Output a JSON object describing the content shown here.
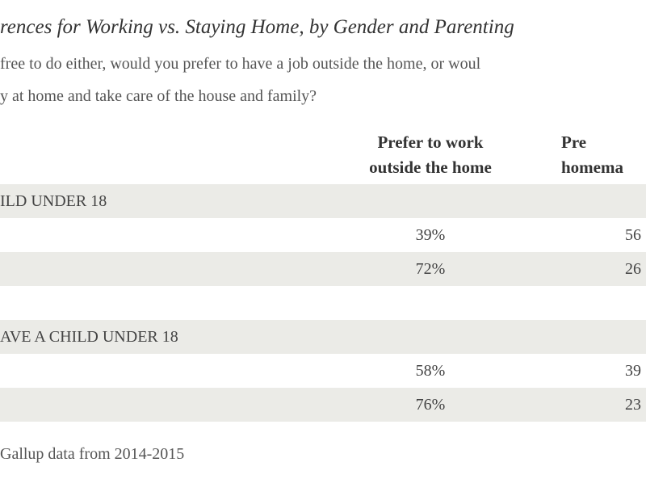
{
  "header": {
    "title": "rences for Working vs. Staying Home, by Gender and Parenting",
    "subtitle_lines": [
      "free to do either, would you prefer to have a job outside the home, or woul",
      "y at home and take care of the house and family?"
    ]
  },
  "table": {
    "columns": [
      [
        "Prefer to work",
        "outside the home"
      ],
      [
        "Pre",
        "homema"
      ]
    ],
    "rows": [
      {
        "label": "ILD UNDER 18",
        "cells": []
      },
      {
        "label": null,
        "cells": [
          "39%",
          "56"
        ]
      },
      {
        "label": null,
        "cells": [
          "72%",
          "26"
        ]
      },
      {
        "label": null,
        "cells": []
      },
      {
        "label": "AVE A CHILD UNDER 18",
        "cells": []
      },
      {
        "label": null,
        "cells": [
          "58%",
          "39"
        ]
      },
      {
        "label": null,
        "cells": [
          "76%",
          "23"
        ]
      }
    ]
  },
  "footer": {
    "note": "Gallup data from 2014-2015"
  }
}
